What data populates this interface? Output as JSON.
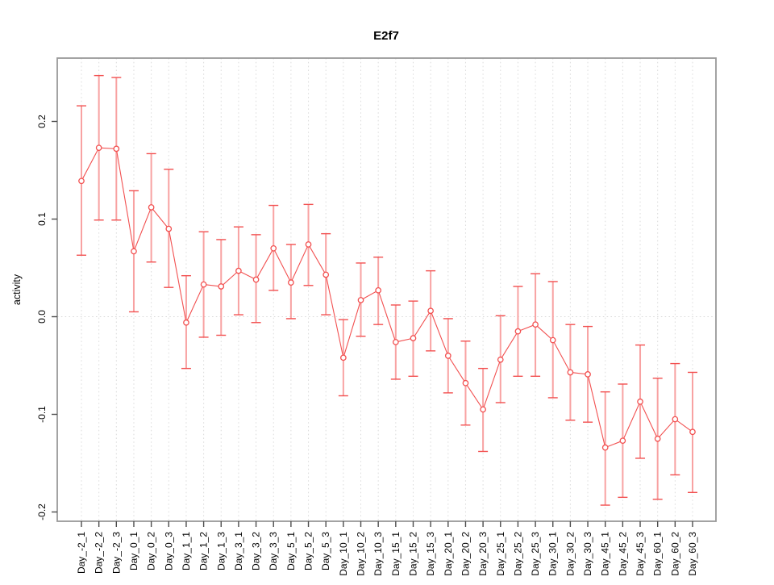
{
  "window": {
    "title": "E2f7"
  },
  "chart_data": {
    "type": "line",
    "subtype": "points-with-error-bars",
    "title": "E2f7",
    "xlabel": "",
    "ylabel": "activity",
    "legend": "none",
    "grid": "vertical dotted gridline at every category; dotted horizontal reference line at y=0",
    "ylim": [
      -0.21,
      0.265
    ],
    "yticks": [
      -0.2,
      -0.1,
      0.0,
      0.1,
      0.2
    ],
    "ytick_labels": [
      "-0.2",
      "-0.1",
      "0.0",
      "0.1",
      "0.2"
    ],
    "categories": [
      "Day_-2_1",
      "Day_-2_2",
      "Day_-2_3",
      "Day_0_1",
      "Day_0_2",
      "Day_0_3",
      "Day_1_1",
      "Day_1_2",
      "Day_1_3",
      "Day_3_1",
      "Day_3_2",
      "Day_3_3",
      "Day_5_1",
      "Day_5_2",
      "Day_5_3",
      "Day_10_1",
      "Day_10_2",
      "Day_10_3",
      "Day_15_1",
      "Day_15_2",
      "Day_15_3",
      "Day_20_1",
      "Day_20_2",
      "Day_20_3",
      "Day_25_1",
      "Day_25_2",
      "Day_25_3",
      "Day_30_1",
      "Day_30_2",
      "Day_30_3",
      "Day_45_1",
      "Day_45_2",
      "Day_45_3",
      "Day_60_1",
      "Day_60_2",
      "Day_60_3"
    ],
    "series": [
      {
        "name": "activity",
        "marker": "open-circle",
        "values": [
          0.139,
          0.173,
          0.172,
          0.067,
          0.112,
          0.09,
          -0.006,
          0.033,
          0.031,
          0.047,
          0.038,
          0.07,
          0.035,
          0.074,
          0.043,
          -0.042,
          0.017,
          0.027,
          -0.026,
          -0.022,
          0.006,
          -0.04,
          -0.068,
          -0.095,
          -0.044,
          -0.015,
          -0.008,
          -0.024,
          -0.057,
          -0.059,
          -0.134,
          -0.127,
          -0.087,
          -0.125,
          -0.105,
          -0.118
        ],
        "lower": [
          0.063,
          0.099,
          0.099,
          0.005,
          0.056,
          0.03,
          -0.053,
          -0.021,
          -0.019,
          0.002,
          -0.006,
          0.027,
          -0.002,
          0.032,
          0.002,
          -0.081,
          -0.02,
          -0.008,
          -0.064,
          -0.061,
          -0.035,
          -0.078,
          -0.111,
          -0.138,
          -0.088,
          -0.061,
          -0.061,
          -0.083,
          -0.106,
          -0.108,
          -0.193,
          -0.185,
          -0.145,
          -0.187,
          -0.162,
          -0.18
        ],
        "upper": [
          0.216,
          0.247,
          0.245,
          0.129,
          0.167,
          0.151,
          0.042,
          0.087,
          0.079,
          0.092,
          0.084,
          0.114,
          0.074,
          0.115,
          0.085,
          -0.003,
          0.055,
          0.061,
          0.012,
          0.016,
          0.047,
          -0.002,
          -0.025,
          -0.053,
          0.001,
          0.031,
          0.044,
          0.036,
          -0.008,
          -0.01,
          -0.077,
          -0.069,
          -0.029,
          -0.063,
          -0.048,
          -0.057
        ]
      }
    ],
    "colors": {
      "point": "#f25050",
      "line": "#f25050",
      "error_bar": "#f8a2a2",
      "error_cap": "#f25050",
      "gridline": "#dcdcdc",
      "zero_line": "#d8d8d8",
      "box": "#999999",
      "tick": "#4d4d4d",
      "text": "#000000"
    }
  }
}
